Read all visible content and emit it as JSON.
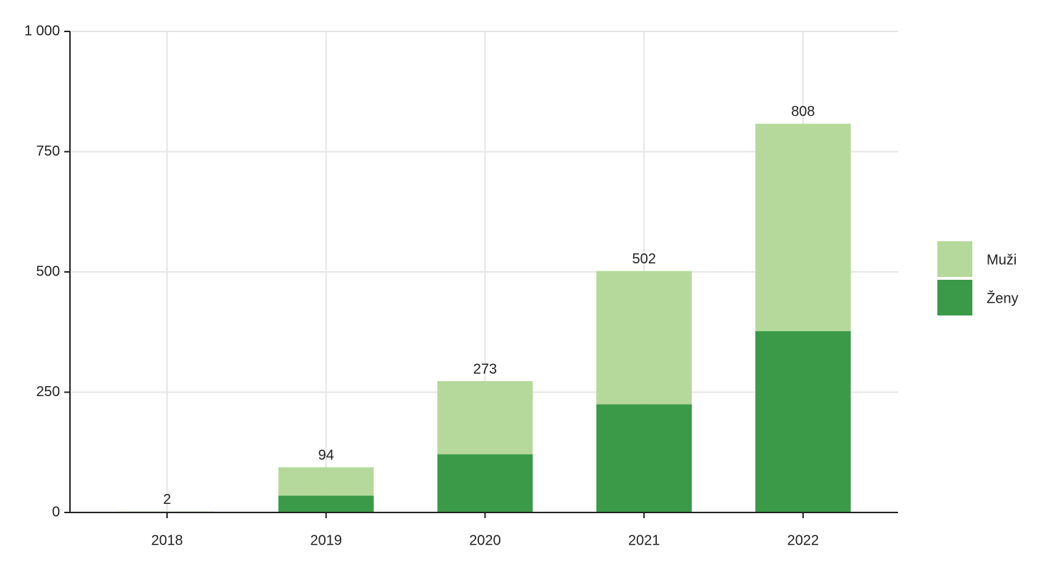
{
  "chart_data": {
    "type": "stacked_bar",
    "categories": [
      "2018",
      "2019",
      "2020",
      "2021",
      "2022"
    ],
    "series": [
      {
        "name": "Muži",
        "color": "#b5d99a",
        "values": [
          1,
          59,
          152,
          277,
          431
        ]
      },
      {
        "name": "Ženy",
        "color": "#3a9a47",
        "values": [
          1,
          35,
          121,
          225,
          377
        ]
      }
    ],
    "totals": [
      2,
      94,
      273,
      502,
      808
    ],
    "ylim": [
      0,
      1000
    ],
    "yticks": [
      0,
      250,
      500,
      750,
      {
        "value": 1000,
        "label": "1 000"
      }
    ],
    "grid": true,
    "legend": "right"
  }
}
